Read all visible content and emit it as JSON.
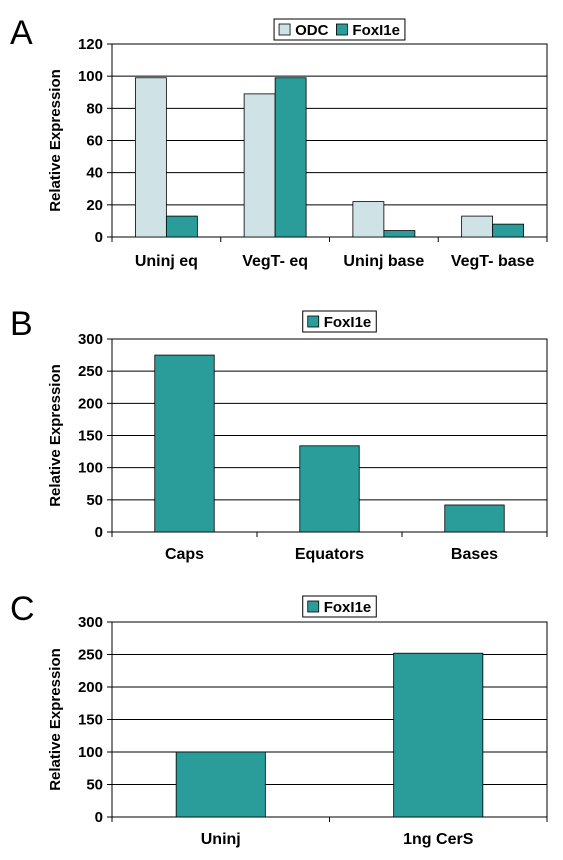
{
  "chart_data": [
    {
      "panel": "A",
      "type": "bar",
      "categories": [
        "Uninj eq",
        "VegT- eq",
        "Uninj base",
        "VegT- base"
      ],
      "series": [
        {
          "name": "ODC",
          "values": [
            99,
            89,
            22,
            13
          ],
          "color": "#cfe2e6"
        },
        {
          "name": "FoxI1e",
          "values": [
            13,
            99,
            4,
            8
          ],
          "color": "#2a9d9a"
        }
      ],
      "ylabel": "Relative Expression",
      "ylim": [
        0,
        120
      ],
      "yticks": [
        0,
        20,
        40,
        60,
        80,
        100,
        120
      ],
      "grid": true,
      "legend": "top-center"
    },
    {
      "panel": "B",
      "type": "bar",
      "categories": [
        "Caps",
        "Equators",
        "Bases"
      ],
      "series": [
        {
          "name": "FoxI1e",
          "values": [
            275,
            134,
            42
          ],
          "color": "#2a9d9a"
        }
      ],
      "ylabel": "Relative Expression",
      "ylim": [
        0,
        300
      ],
      "yticks": [
        0,
        50,
        100,
        150,
        200,
        250,
        300
      ],
      "grid": true,
      "legend": "top-center"
    },
    {
      "panel": "C",
      "type": "bar",
      "categories": [
        "Uninj",
        "1ng CerS"
      ],
      "series": [
        {
          "name": "FoxI1e",
          "values": [
            100,
            252
          ],
          "color": "#2a9d9a"
        }
      ],
      "ylabel": "Relative Expression",
      "ylim": [
        0,
        300
      ],
      "yticks": [
        0,
        50,
        100,
        150,
        200,
        250,
        300
      ],
      "grid": true,
      "legend": "top-center"
    }
  ]
}
